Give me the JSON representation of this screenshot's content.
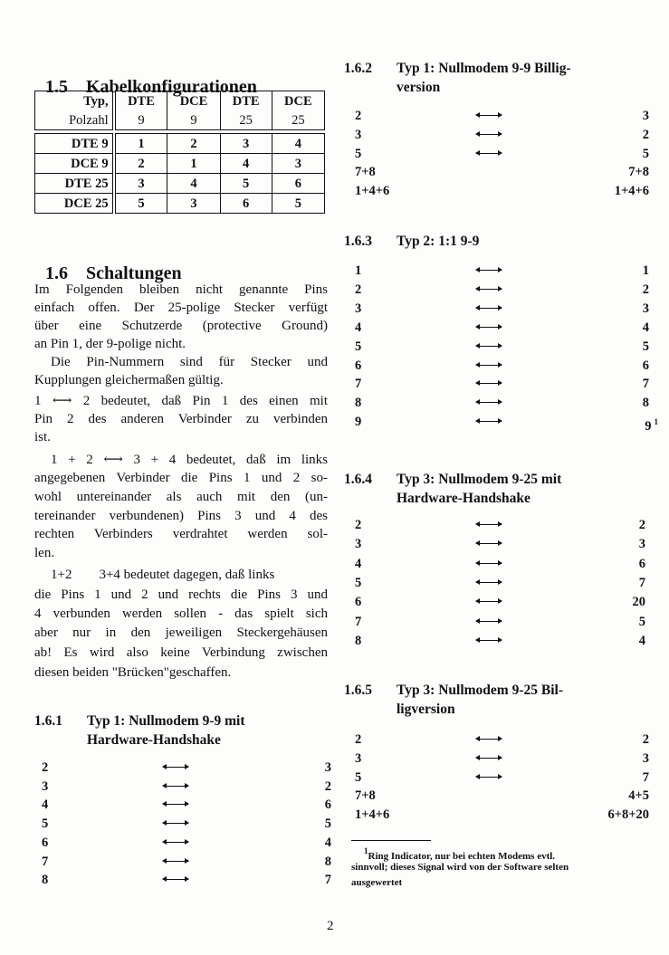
{
  "section_1_5": {
    "number": "1.5",
    "title": "Kabelkonfigurationen"
  },
  "table": {
    "header_row1": [
      "Typ,",
      "DTE",
      "DCE",
      "DTE",
      "DCE"
    ],
    "header_row2": [
      "Polzahl",
      "9",
      "9",
      "25",
      "25"
    ],
    "rows": [
      [
        "DTE 9",
        "1",
        "2",
        "3",
        "4"
      ],
      [
        "DCE 9",
        "2",
        "1",
        "4",
        "3"
      ],
      [
        "DTE 25",
        "3",
        "4",
        "5",
        "6"
      ],
      [
        "DCE 25",
        "5",
        "3",
        "6",
        "5"
      ]
    ]
  },
  "section_1_6": {
    "number": "1.6",
    "title": "Schaltungen"
  },
  "body_lines": [
    {
      "text": "Im Folgenden bleiben nicht genannte Pins",
      "justify": true
    },
    {
      "text": "einfach offen. Der 25-polige Stecker verfügt",
      "justify": true
    },
    {
      "text": "über eine Schutzerde (protective Ground)",
      "justify": true
    },
    {
      "text": "an Pin 1, der 9-polige nicht.",
      "justify": false
    },
    {
      "text": "Die Pin-Nummern sind für Stecker und",
      "justify": true,
      "indent": true
    },
    {
      "text": "Kupplungen gleichermaßen gültig.",
      "justify": false
    },
    {
      "text": "1 ⟷ 2 bedeutet, daß Pin 1 des einen mit",
      "justify": true
    },
    {
      "text": "Pin 2 des anderen Verbinder zu verbinden",
      "justify": true
    },
    {
      "text": "ist.",
      "justify": false
    },
    {
      "text": "1 + 2 ⟷ 3 + 4 bedeutet, daß im links",
      "justify": true,
      "indent": true
    },
    {
      "text": "angegebenen Verbinder die Pins 1 und 2 so-",
      "justify": true
    },
    {
      "text": "wohl untereinander als auch mit den (un-",
      "justify": true
    },
    {
      "text": "tereinander verbundenen) Pins 3 und 4 des",
      "justify": true
    },
    {
      "text": "rechten Verbinders verdrahtet werden sol-",
      "justify": true
    },
    {
      "text": "len.",
      "justify": false
    },
    {
      "text": "1+2        3+4 bedeutet dagegen, daß links",
      "justify": false,
      "indent": true
    },
    {
      "text": "die Pins 1 und 2 und rechts die Pins 3 und",
      "justify": true
    },
    {
      "text": "4 verbunden werden sollen - das spielt sich",
      "justify": true
    },
    {
      "text": "aber nur in den jeweiligen Steckergehäusen",
      "justify": true
    },
    {
      "text": "ab! Es wird also keine Verbindung zwischen",
      "justify": true
    },
    {
      "text": "diesen beiden \"Brücken\"geschaffen.",
      "justify": false
    }
  ],
  "sections": [
    {
      "number": "1.6.1",
      "title": [
        "Typ 1: Nullmodem 9-9 mit",
        "Hardware-Handshake"
      ],
      "rows": [
        {
          "left": "2",
          "right": "3",
          "arrow": true
        },
        {
          "left": "3",
          "right": "2",
          "arrow": true
        },
        {
          "left": "4",
          "right": "6",
          "arrow": true
        },
        {
          "left": "5",
          "right": "5",
          "arrow": true
        },
        {
          "left": "6",
          "right": "4",
          "arrow": true
        },
        {
          "left": "7",
          "right": "8",
          "arrow": true
        },
        {
          "left": "8",
          "right": "7",
          "arrow": true
        }
      ]
    },
    {
      "number": "1.6.2",
      "title": [
        "Typ 1: Nullmodem 9-9 Billig-",
        "version"
      ],
      "rows": [
        {
          "left": "2",
          "right": "3",
          "arrow": true
        },
        {
          "left": "3",
          "right": "2",
          "arrow": true
        },
        {
          "left": "5",
          "right": "5",
          "arrow": true
        },
        {
          "left": "7+8",
          "right": "7+8",
          "arrow": false
        },
        {
          "left": "1+4+6",
          "right": "1+4+6",
          "arrow": false
        }
      ]
    },
    {
      "number": "1.6.3",
      "title": [
        "Typ 2: 1:1 9-9"
      ],
      "rows": [
        {
          "left": "1",
          "right": "1",
          "arrow": true
        },
        {
          "left": "2",
          "right": "2",
          "arrow": true
        },
        {
          "left": "3",
          "right": "3",
          "arrow": true
        },
        {
          "left": "4",
          "right": "4",
          "arrow": true
        },
        {
          "left": "5",
          "right": "5",
          "arrow": true
        },
        {
          "left": "6",
          "right": "6",
          "arrow": true
        },
        {
          "left": "7",
          "right": "7",
          "arrow": true
        },
        {
          "left": "8",
          "right": "8",
          "arrow": true
        },
        {
          "left": "9",
          "right": "9",
          "arrow": true,
          "footnote_mark": "1"
        }
      ]
    },
    {
      "number": "1.6.4",
      "title": [
        "Typ 3: Nullmodem 9-25 mit",
        "Hardware-Handshake"
      ],
      "rows": [
        {
          "left": "2",
          "right": "2",
          "arrow": true
        },
        {
          "left": "3",
          "right": "3",
          "arrow": true
        },
        {
          "left": "4",
          "right": "6",
          "arrow": true
        },
        {
          "left": "5",
          "right": "7",
          "arrow": true
        },
        {
          "left": "6",
          "right": "20",
          "arrow": true
        },
        {
          "left": "7",
          "right": "5",
          "arrow": true
        },
        {
          "left": "8",
          "right": "4",
          "arrow": true
        }
      ]
    },
    {
      "number": "1.6.5",
      "title": [
        "Typ 3: Nullmodem 9-25 Bil-",
        "ligversion"
      ],
      "rows": [
        {
          "left": "2",
          "right": "2",
          "arrow": true
        },
        {
          "left": "3",
          "right": "3",
          "arrow": true
        },
        {
          "left": "5",
          "right": "7",
          "arrow": true
        },
        {
          "left": "7+8",
          "right": "4+5",
          "arrow": false
        },
        {
          "left": "1+4+6",
          "right": "6+8+20",
          "arrow": false
        }
      ]
    }
  ],
  "footnote": {
    "mark": "1",
    "lines": [
      "Ring Indicator, nur bei echten Modems evtl.",
      "sinnvoll; dieses Signal wird von der Software selten",
      "ausgewertet"
    ]
  },
  "page_number": "2",
  "arrow_icon": "long-left-right-arrow"
}
